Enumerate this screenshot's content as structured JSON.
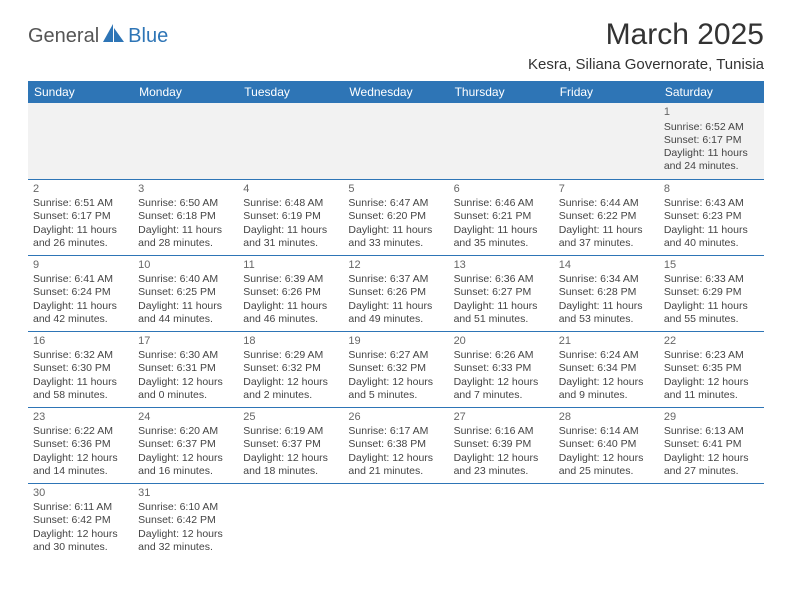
{
  "logo": {
    "part1": "General",
    "part2": "Blue"
  },
  "title": "March 2025",
  "location": "Kesra, Siliana Governorate, Tunisia",
  "colors": {
    "header_bg": "#2e75b6",
    "header_text": "#ffffff",
    "row_border": "#2e75b6",
    "blank_bg": "#f2f2f2",
    "body_text": "#444444",
    "page_bg": "#ffffff"
  },
  "weekdays": [
    "Sunday",
    "Monday",
    "Tuesday",
    "Wednesday",
    "Thursday",
    "Friday",
    "Saturday"
  ],
  "cells": [
    [
      null,
      null,
      null,
      null,
      null,
      null,
      {
        "day": "1",
        "sunrise": "Sunrise: 6:52 AM",
        "sunset": "Sunset: 6:17 PM",
        "daylight": "Daylight: 11 hours and 24 minutes."
      }
    ],
    [
      {
        "day": "2",
        "sunrise": "Sunrise: 6:51 AM",
        "sunset": "Sunset: 6:17 PM",
        "daylight": "Daylight: 11 hours and 26 minutes."
      },
      {
        "day": "3",
        "sunrise": "Sunrise: 6:50 AM",
        "sunset": "Sunset: 6:18 PM",
        "daylight": "Daylight: 11 hours and 28 minutes."
      },
      {
        "day": "4",
        "sunrise": "Sunrise: 6:48 AM",
        "sunset": "Sunset: 6:19 PM",
        "daylight": "Daylight: 11 hours and 31 minutes."
      },
      {
        "day": "5",
        "sunrise": "Sunrise: 6:47 AM",
        "sunset": "Sunset: 6:20 PM",
        "daylight": "Daylight: 11 hours and 33 minutes."
      },
      {
        "day": "6",
        "sunrise": "Sunrise: 6:46 AM",
        "sunset": "Sunset: 6:21 PM",
        "daylight": "Daylight: 11 hours and 35 minutes."
      },
      {
        "day": "7",
        "sunrise": "Sunrise: 6:44 AM",
        "sunset": "Sunset: 6:22 PM",
        "daylight": "Daylight: 11 hours and 37 minutes."
      },
      {
        "day": "8",
        "sunrise": "Sunrise: 6:43 AM",
        "sunset": "Sunset: 6:23 PM",
        "daylight": "Daylight: 11 hours and 40 minutes."
      }
    ],
    [
      {
        "day": "9",
        "sunrise": "Sunrise: 6:41 AM",
        "sunset": "Sunset: 6:24 PM",
        "daylight": "Daylight: 11 hours and 42 minutes."
      },
      {
        "day": "10",
        "sunrise": "Sunrise: 6:40 AM",
        "sunset": "Sunset: 6:25 PM",
        "daylight": "Daylight: 11 hours and 44 minutes."
      },
      {
        "day": "11",
        "sunrise": "Sunrise: 6:39 AM",
        "sunset": "Sunset: 6:26 PM",
        "daylight": "Daylight: 11 hours and 46 minutes."
      },
      {
        "day": "12",
        "sunrise": "Sunrise: 6:37 AM",
        "sunset": "Sunset: 6:26 PM",
        "daylight": "Daylight: 11 hours and 49 minutes."
      },
      {
        "day": "13",
        "sunrise": "Sunrise: 6:36 AM",
        "sunset": "Sunset: 6:27 PM",
        "daylight": "Daylight: 11 hours and 51 minutes."
      },
      {
        "day": "14",
        "sunrise": "Sunrise: 6:34 AM",
        "sunset": "Sunset: 6:28 PM",
        "daylight": "Daylight: 11 hours and 53 minutes."
      },
      {
        "day": "15",
        "sunrise": "Sunrise: 6:33 AM",
        "sunset": "Sunset: 6:29 PM",
        "daylight": "Daylight: 11 hours and 55 minutes."
      }
    ],
    [
      {
        "day": "16",
        "sunrise": "Sunrise: 6:32 AM",
        "sunset": "Sunset: 6:30 PM",
        "daylight": "Daylight: 11 hours and 58 minutes."
      },
      {
        "day": "17",
        "sunrise": "Sunrise: 6:30 AM",
        "sunset": "Sunset: 6:31 PM",
        "daylight": "Daylight: 12 hours and 0 minutes."
      },
      {
        "day": "18",
        "sunrise": "Sunrise: 6:29 AM",
        "sunset": "Sunset: 6:32 PM",
        "daylight": "Daylight: 12 hours and 2 minutes."
      },
      {
        "day": "19",
        "sunrise": "Sunrise: 6:27 AM",
        "sunset": "Sunset: 6:32 PM",
        "daylight": "Daylight: 12 hours and 5 minutes."
      },
      {
        "day": "20",
        "sunrise": "Sunrise: 6:26 AM",
        "sunset": "Sunset: 6:33 PM",
        "daylight": "Daylight: 12 hours and 7 minutes."
      },
      {
        "day": "21",
        "sunrise": "Sunrise: 6:24 AM",
        "sunset": "Sunset: 6:34 PM",
        "daylight": "Daylight: 12 hours and 9 minutes."
      },
      {
        "day": "22",
        "sunrise": "Sunrise: 6:23 AM",
        "sunset": "Sunset: 6:35 PM",
        "daylight": "Daylight: 12 hours and 11 minutes."
      }
    ],
    [
      {
        "day": "23",
        "sunrise": "Sunrise: 6:22 AM",
        "sunset": "Sunset: 6:36 PM",
        "daylight": "Daylight: 12 hours and 14 minutes."
      },
      {
        "day": "24",
        "sunrise": "Sunrise: 6:20 AM",
        "sunset": "Sunset: 6:37 PM",
        "daylight": "Daylight: 12 hours and 16 minutes."
      },
      {
        "day": "25",
        "sunrise": "Sunrise: 6:19 AM",
        "sunset": "Sunset: 6:37 PM",
        "daylight": "Daylight: 12 hours and 18 minutes."
      },
      {
        "day": "26",
        "sunrise": "Sunrise: 6:17 AM",
        "sunset": "Sunset: 6:38 PM",
        "daylight": "Daylight: 12 hours and 21 minutes."
      },
      {
        "day": "27",
        "sunrise": "Sunrise: 6:16 AM",
        "sunset": "Sunset: 6:39 PM",
        "daylight": "Daylight: 12 hours and 23 minutes."
      },
      {
        "day": "28",
        "sunrise": "Sunrise: 6:14 AM",
        "sunset": "Sunset: 6:40 PM",
        "daylight": "Daylight: 12 hours and 25 minutes."
      },
      {
        "day": "29",
        "sunrise": "Sunrise: 6:13 AM",
        "sunset": "Sunset: 6:41 PM",
        "daylight": "Daylight: 12 hours and 27 minutes."
      }
    ],
    [
      {
        "day": "30",
        "sunrise": "Sunrise: 6:11 AM",
        "sunset": "Sunset: 6:42 PM",
        "daylight": "Daylight: 12 hours and 30 minutes."
      },
      {
        "day": "31",
        "sunrise": "Sunrise: 6:10 AM",
        "sunset": "Sunset: 6:42 PM",
        "daylight": "Daylight: 12 hours and 32 minutes."
      },
      null,
      null,
      null,
      null,
      null
    ]
  ]
}
